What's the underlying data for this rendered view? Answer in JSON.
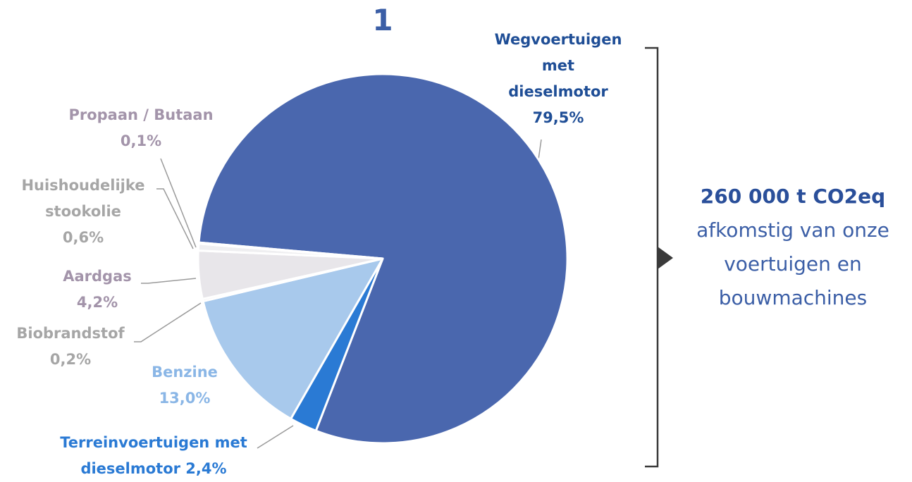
{
  "chart_data": {
    "type": "pie",
    "title": "1",
    "categories": [
      "Wegvoertuigen met dieselmotor",
      "Terreinvoertuigen met",
      "Benzine",
      "Biobrandstof",
      "Aardgas",
      "Huishoudelijke stookolie",
      "Propaan / Butaan"
    ],
    "values": [
      79.5,
      2.4,
      13.0,
      0.2,
      4.2,
      0.6,
      0.1
    ],
    "value_labels": [
      "79,5%",
      "dieselmotor 2,4%",
      "13,0%",
      "0,2%",
      "4,2%",
      "0,6%",
      "0,1%"
    ],
    "colors": [
      "#4a67ae",
      "#2a7ad4",
      "#a8c9ec",
      "#e2dfe5",
      "#e8e6ea",
      "#efeff1",
      "#d9d3dd"
    ],
    "label_colors": [
      "#1f4e96",
      "#2a7ad4",
      "#8ab6e6",
      "#a6a6a6",
      "#a394aa",
      "#a6a6a6",
      "#a394aa"
    ],
    "total_title": "260 000 t CO2eq",
    "total_text": "afkomstig van onze voertuigen en bouwmachines"
  }
}
